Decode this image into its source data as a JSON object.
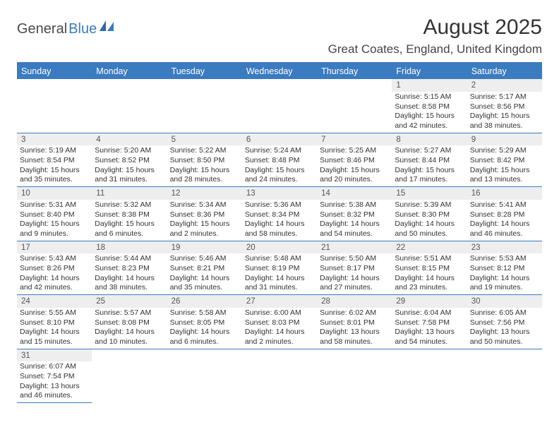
{
  "logo": {
    "text1": "General",
    "text2": "Blue"
  },
  "title": "August 2025",
  "location": "Great Coates, England, United Kingdom",
  "colors": {
    "accent": "#3b7bbf",
    "daynum_bg": "#eeeeee",
    "text": "#333333"
  },
  "weekdays": [
    "Sunday",
    "Monday",
    "Tuesday",
    "Wednesday",
    "Thursday",
    "Friday",
    "Saturday"
  ],
  "weeks": [
    [
      null,
      null,
      null,
      null,
      null,
      {
        "n": "1",
        "sr": "5:15 AM",
        "ss": "8:58 PM",
        "dl": "15 hours and 42 minutes."
      },
      {
        "n": "2",
        "sr": "5:17 AM",
        "ss": "8:56 PM",
        "dl": "15 hours and 38 minutes."
      }
    ],
    [
      {
        "n": "3",
        "sr": "5:19 AM",
        "ss": "8:54 PM",
        "dl": "15 hours and 35 minutes."
      },
      {
        "n": "4",
        "sr": "5:20 AM",
        "ss": "8:52 PM",
        "dl": "15 hours and 31 minutes."
      },
      {
        "n": "5",
        "sr": "5:22 AM",
        "ss": "8:50 PM",
        "dl": "15 hours and 28 minutes."
      },
      {
        "n": "6",
        "sr": "5:24 AM",
        "ss": "8:48 PM",
        "dl": "15 hours and 24 minutes."
      },
      {
        "n": "7",
        "sr": "5:25 AM",
        "ss": "8:46 PM",
        "dl": "15 hours and 20 minutes."
      },
      {
        "n": "8",
        "sr": "5:27 AM",
        "ss": "8:44 PM",
        "dl": "15 hours and 17 minutes."
      },
      {
        "n": "9",
        "sr": "5:29 AM",
        "ss": "8:42 PM",
        "dl": "15 hours and 13 minutes."
      }
    ],
    [
      {
        "n": "10",
        "sr": "5:31 AM",
        "ss": "8:40 PM",
        "dl": "15 hours and 9 minutes."
      },
      {
        "n": "11",
        "sr": "5:32 AM",
        "ss": "8:38 PM",
        "dl": "15 hours and 6 minutes."
      },
      {
        "n": "12",
        "sr": "5:34 AM",
        "ss": "8:36 PM",
        "dl": "15 hours and 2 minutes."
      },
      {
        "n": "13",
        "sr": "5:36 AM",
        "ss": "8:34 PM",
        "dl": "14 hours and 58 minutes."
      },
      {
        "n": "14",
        "sr": "5:38 AM",
        "ss": "8:32 PM",
        "dl": "14 hours and 54 minutes."
      },
      {
        "n": "15",
        "sr": "5:39 AM",
        "ss": "8:30 PM",
        "dl": "14 hours and 50 minutes."
      },
      {
        "n": "16",
        "sr": "5:41 AM",
        "ss": "8:28 PM",
        "dl": "14 hours and 46 minutes."
      }
    ],
    [
      {
        "n": "17",
        "sr": "5:43 AM",
        "ss": "8:26 PM",
        "dl": "14 hours and 42 minutes."
      },
      {
        "n": "18",
        "sr": "5:44 AM",
        "ss": "8:23 PM",
        "dl": "14 hours and 38 minutes."
      },
      {
        "n": "19",
        "sr": "5:46 AM",
        "ss": "8:21 PM",
        "dl": "14 hours and 35 minutes."
      },
      {
        "n": "20",
        "sr": "5:48 AM",
        "ss": "8:19 PM",
        "dl": "14 hours and 31 minutes."
      },
      {
        "n": "21",
        "sr": "5:50 AM",
        "ss": "8:17 PM",
        "dl": "14 hours and 27 minutes."
      },
      {
        "n": "22",
        "sr": "5:51 AM",
        "ss": "8:15 PM",
        "dl": "14 hours and 23 minutes."
      },
      {
        "n": "23",
        "sr": "5:53 AM",
        "ss": "8:12 PM",
        "dl": "14 hours and 19 minutes."
      }
    ],
    [
      {
        "n": "24",
        "sr": "5:55 AM",
        "ss": "8:10 PM",
        "dl": "14 hours and 15 minutes."
      },
      {
        "n": "25",
        "sr": "5:57 AM",
        "ss": "8:08 PM",
        "dl": "14 hours and 10 minutes."
      },
      {
        "n": "26",
        "sr": "5:58 AM",
        "ss": "8:05 PM",
        "dl": "14 hours and 6 minutes."
      },
      {
        "n": "27",
        "sr": "6:00 AM",
        "ss": "8:03 PM",
        "dl": "14 hours and 2 minutes."
      },
      {
        "n": "28",
        "sr": "6:02 AM",
        "ss": "8:01 PM",
        "dl": "13 hours and 58 minutes."
      },
      {
        "n": "29",
        "sr": "6:04 AM",
        "ss": "7:58 PM",
        "dl": "13 hours and 54 minutes."
      },
      {
        "n": "30",
        "sr": "6:05 AM",
        "ss": "7:56 PM",
        "dl": "13 hours and 50 minutes."
      }
    ],
    [
      {
        "n": "31",
        "sr": "6:07 AM",
        "ss": "7:54 PM",
        "dl": "13 hours and 46 minutes."
      },
      null,
      null,
      null,
      null,
      null,
      null
    ]
  ],
  "labels": {
    "sunrise": "Sunrise:",
    "sunset": "Sunset:",
    "daylight": "Daylight:"
  }
}
